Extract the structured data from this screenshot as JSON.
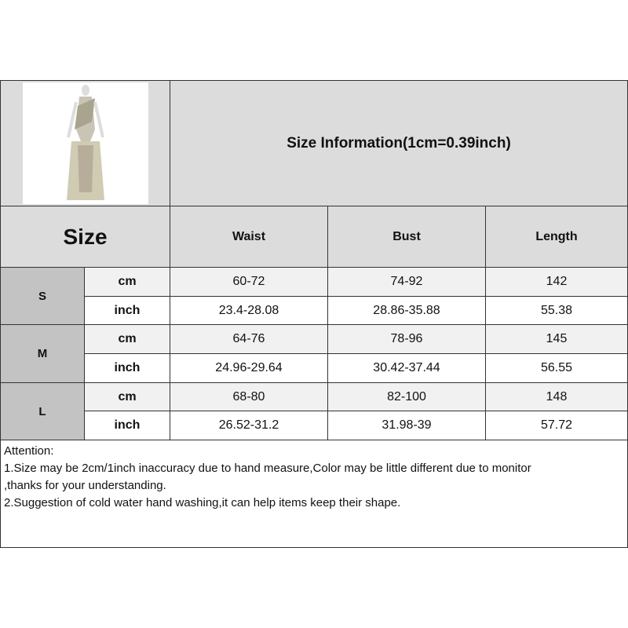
{
  "title": "Size Information(1cm=0.39inch)",
  "size_header": "Size",
  "columns": [
    "Waist",
    "Bust",
    "Length"
  ],
  "sizes": [
    {
      "label": "S",
      "rows": [
        {
          "unit": "cm",
          "values": [
            "60-72",
            "74-92",
            "142"
          ]
        },
        {
          "unit": "inch",
          "values": [
            "23.4-28.08",
            "28.86-35.88",
            "55.38"
          ]
        }
      ]
    },
    {
      "label": "M",
      "rows": [
        {
          "unit": "cm",
          "values": [
            "64-76",
            "78-96",
            "145"
          ]
        },
        {
          "unit": "inch",
          "values": [
            "24.96-29.64",
            "30.42-37.44",
            "56.55"
          ]
        }
      ]
    },
    {
      "label": "L",
      "rows": [
        {
          "unit": "cm",
          "values": [
            "68-80",
            "82-100",
            "148"
          ]
        },
        {
          "unit": "inch",
          "values": [
            "26.52-31.2",
            "31.98-39",
            "57.72"
          ]
        }
      ]
    }
  ],
  "attention": {
    "heading": "Attention:",
    "lines": [
      "1.Size may be 2cm/1inch inaccuracy due to hand measure,Color may be little different due to monitor",
      ",thanks for your understanding.",
      "2.Suggestion of cold water hand washing,it can help items keep their shape."
    ]
  },
  "colors": {
    "header_bg": "#dcdcdc",
    "size_label_bg": "#c3c3c3",
    "cm_row_bg": "#f1f1f1"
  }
}
